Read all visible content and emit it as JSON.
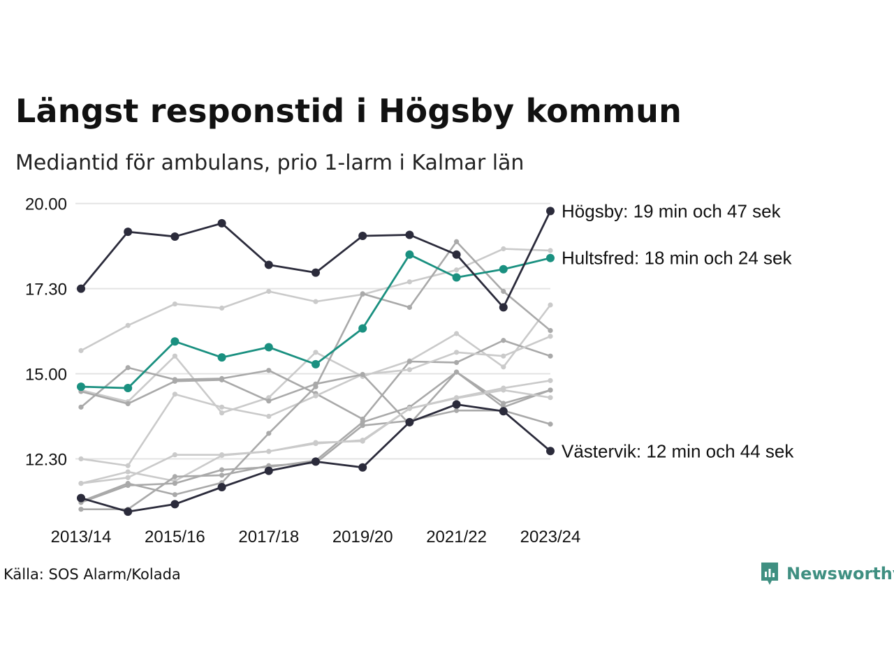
{
  "title": "Längst responstid i Högsby kommun",
  "subtitle": "Mediantid för ambulans, prio 1-larm i Kalmar län",
  "source": "Källa: SOS Alarm/Kolada",
  "logo": {
    "text": "Newsworthy",
    "icon": "chart-bars-icon",
    "color": "#3f8f81"
  },
  "chart_data": {
    "type": "line",
    "title": "Längst responstid i Högsby kommun",
    "xlabel": "",
    "ylabel": "",
    "x": [
      "2013/14",
      "2014/15",
      "2015/16",
      "2016/17",
      "2017/18",
      "2018/19",
      "2019/20",
      "2020/21",
      "2021/22",
      "2022/23",
      "2023/24"
    ],
    "xtick_labels": [
      "2013/14",
      "2015/16",
      "2017/18",
      "2019/20",
      "2021/22",
      "2023/24"
    ],
    "ylim": [
      10.85,
      20.3
    ],
    "yticks": [
      12.5,
      15.0,
      17.5,
      20.0
    ],
    "ytick_labels": [
      "12.30",
      "15.00",
      "17.30",
      "20.00"
    ],
    "grid": "horizontal",
    "colors": {
      "highlight_dark": "#2b2b3b",
      "highlight_teal": "#1a9080",
      "other_light": "#cacaca",
      "other_mid": "#a9a9a9"
    },
    "series": [
      {
        "name": "Högsby",
        "color": "#2b2b3b",
        "highlight": true,
        "values": [
          17.5,
          19.17,
          19.03,
          19.42,
          18.2,
          17.97,
          19.05,
          19.08,
          18.5,
          16.95,
          19.78
        ]
      },
      {
        "name": "Hultsfred",
        "color": "#1a9080",
        "highlight": true,
        "values": [
          14.62,
          14.58,
          15.95,
          15.48,
          15.78,
          15.28,
          16.33,
          18.5,
          17.83,
          18.07,
          18.4
        ]
      },
      {
        "name": "Västervik",
        "color": "#2b2b3b",
        "highlight": true,
        "values": [
          11.35,
          10.95,
          11.17,
          11.67,
          12.15,
          12.42,
          12.25,
          13.58,
          14.1,
          13.9,
          12.73
        ]
      },
      {
        "values": [
          15.68,
          16.42,
          17.05,
          16.93,
          17.42,
          17.12,
          17.33,
          17.7,
          18.05,
          18.67,
          18.62
        ],
        "color": "#cacaca"
      },
      {
        "values": [
          14.52,
          14.18,
          15.52,
          13.85,
          14.3,
          15.63,
          14.92,
          15.38,
          16.18,
          15.2,
          17.02
        ]
      },
      {
        "values": [
          14.02,
          15.18,
          14.83,
          14.86,
          15.1,
          14.42,
          13.67,
          15.36,
          15.33,
          15.98,
          15.52
        ],
        "color": "#a9a9a9"
      },
      {
        "values": [
          12.5,
          12.3,
          14.4,
          14.02,
          13.75,
          14.35,
          14.98,
          15.12,
          15.63,
          15.52,
          16.1
        ]
      },
      {
        "values": [
          14.48,
          14.12,
          14.78,
          14.82,
          14.2,
          14.7,
          14.98,
          13.52,
          15.05,
          14.13,
          14.52
        ],
        "color": "#a9a9a9"
      },
      {
        "values": [
          11.78,
          12.12,
          11.85,
          12.6,
          12.72,
          12.98,
          13.02,
          13.98,
          14.3,
          14.58,
          14.8
        ]
      },
      {
        "values": [
          11.25,
          11.78,
          11.45,
          11.8,
          13.25,
          14.62,
          17.35,
          16.95,
          18.88,
          17.42,
          16.27
        ],
        "color": "#a9a9a9"
      },
      {
        "values": [
          11.22,
          11.72,
          11.78,
          12.18,
          12.26,
          12.45,
          13.58,
          14.02,
          15.05,
          14.02,
          14.52
        ],
        "color": "#a9a9a9"
      },
      {
        "values": [
          11.02,
          11.02,
          11.98,
          12.02,
          12.3,
          12.38,
          13.48,
          13.62,
          13.92,
          13.92,
          13.52
        ],
        "color": "#a9a9a9"
      },
      {
        "values": [
          11.78,
          11.95,
          12.62,
          12.62,
          12.72,
          12.95,
          13.05,
          13.98,
          14.28,
          14.52,
          14.3
        ]
      }
    ],
    "annotations": [
      {
        "series": "Högsby",
        "text": "Högsby: 19 min och 47 sek"
      },
      {
        "series": "Hultsfred",
        "text": "Hultsfred: 18 min och 24 sek"
      },
      {
        "series": "Västervik",
        "text": "Västervik: 12 min och 44 sek"
      }
    ]
  }
}
